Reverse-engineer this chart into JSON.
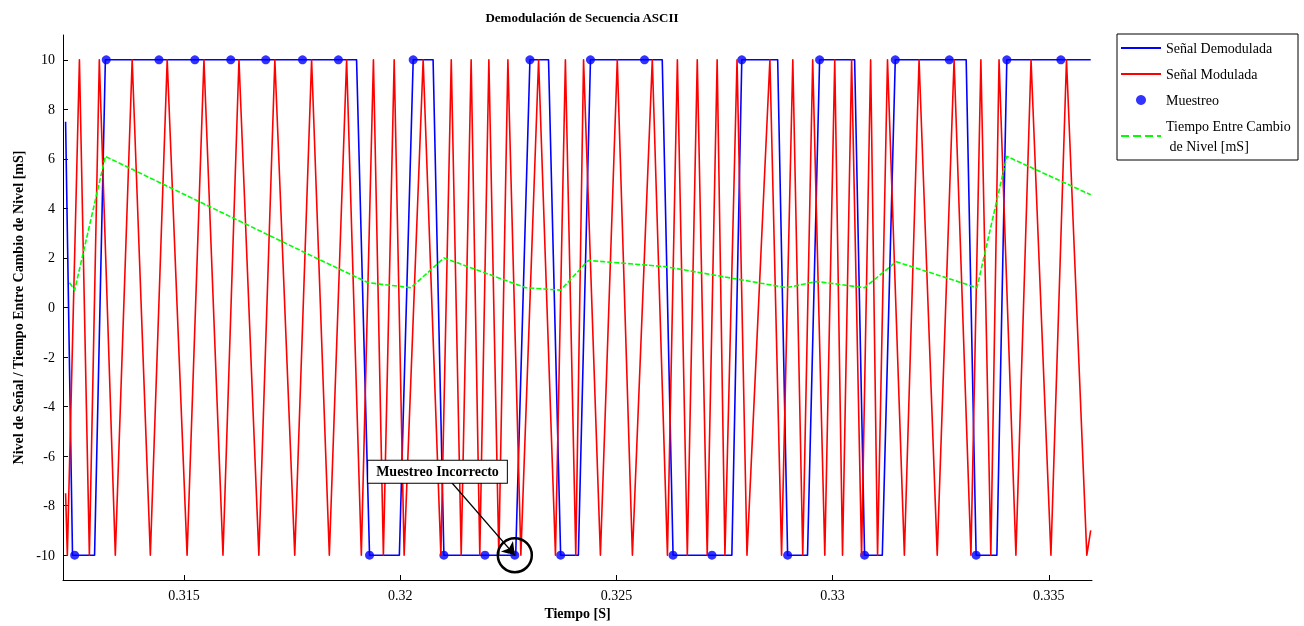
{
  "chart_data": {
    "type": "line",
    "title": "Demodulación de Secuencia ASCII",
    "xlabel": "Tiempo [S]",
    "ylabel": "Nivel de Señal / Tiempo Entre Cambio de Nivel [mS]",
    "xlim": [
      0.3122,
      0.336
    ],
    "xticks": [
      0.315,
      0.32,
      0.325,
      0.33,
      0.335
    ],
    "ylim": [
      -11,
      11
    ],
    "yticks": [
      -10,
      -8,
      -6,
      -4,
      -2,
      0,
      2,
      4,
      6,
      8,
      10
    ],
    "grid": false,
    "legend": "top right",
    "annotations": [
      {
        "text": "Muestreo Incorrecto",
        "x": 0.32265,
        "y": -10
      }
    ],
    "series": [
      {
        "name": "Señal Demodulada",
        "type": "line",
        "color": "#0000ff",
        "marker": "none",
        "line_style": "solid",
        "x": [
          0.31226,
          0.31242,
          0.31293,
          0.31318,
          0.31899,
          0.31929,
          0.31998,
          0.3203,
          0.32076,
          0.32101,
          0.32267,
          0.323,
          0.32343,
          0.32371,
          0.32412,
          0.3244,
          0.32606,
          0.32631,
          0.32767,
          0.3279,
          0.32873,
          0.32896,
          0.32942,
          0.3297,
          0.33051,
          0.33074,
          0.33115,
          0.33145,
          0.33309,
          0.33332,
          0.3338,
          0.33403,
          0.33597
        ],
        "values": [
          7.5,
          -10,
          -10,
          10,
          10,
          -10,
          -10,
          10,
          10,
          -10,
          -10,
          10,
          10,
          -10,
          -10,
          10,
          10,
          -10,
          -10,
          10,
          10,
          -10,
          -10,
          10,
          10,
          -10,
          -10,
          10,
          10,
          -10,
          -10,
          10,
          10
        ]
      },
      {
        "name": "Señal Modulada",
        "type": "line",
        "color": "#ff0000",
        "marker": "none",
        "line_style": "solid",
        "x": [
          0.31226,
          0.3123,
          0.31258,
          0.31281,
          0.31304,
          0.31341,
          0.3138,
          0.31422,
          0.31461,
          0.31507,
          0.31546,
          0.3159,
          0.31627,
          0.31673,
          0.3171,
          0.31756,
          0.31795,
          0.31836,
          0.31876,
          0.3191,
          0.31938,
          0.31961,
          0.31986,
          0.32009,
          0.32053,
          0.32094,
          0.32118,
          0.32141,
          0.32164,
          0.32184,
          0.32205,
          0.32228,
          0.32249,
          0.32279,
          0.3232,
          0.32359,
          0.32382,
          0.32406,
          0.32424,
          0.32463,
          0.32502,
          0.32537,
          0.32583,
          0.32618,
          0.32641,
          0.32664,
          0.32687,
          0.3271,
          0.32733,
          0.32751,
          0.32779,
          0.32802,
          0.32855,
          0.32882,
          0.32908,
          0.32931,
          0.32954,
          0.32982,
          0.33005,
          0.33023,
          0.33044,
          0.33067,
          0.33088,
          0.33104,
          0.33127,
          0.33166,
          0.332,
          0.33242,
          0.33281,
          0.3332,
          0.33343,
          0.33366,
          0.33385,
          0.33424,
          0.33459,
          0.33505,
          0.33541,
          0.33588,
          0.33597
        ],
        "values": [
          -7.5,
          -10,
          10,
          -10,
          10,
          -10,
          10,
          -10,
          10,
          -10,
          10,
          -10,
          10,
          -10,
          10,
          -10,
          10,
          -10,
          10,
          -10,
          10,
          -10,
          10,
          -10,
          10,
          -10,
          10,
          -10,
          10,
          -10,
          10,
          -10,
          10,
          -10,
          10,
          -10,
          10,
          -10,
          10,
          -10,
          10,
          -10,
          10,
          -10,
          10,
          -10,
          10,
          -10,
          10,
          -10,
          10,
          -10,
          10,
          -10,
          10,
          -10,
          10,
          -10,
          10,
          -10,
          10,
          -10,
          10,
          -10,
          10,
          -10,
          10,
          -10,
          10,
          -10,
          10,
          -10,
          10,
          -10,
          10,
          -10,
          10,
          -10,
          -9
        ]
      },
      {
        "name": "Muestreo",
        "type": "scatter",
        "color": "#0000ff",
        "marker": "circle",
        "x": [
          0.31247,
          0.3132,
          0.31442,
          0.31525,
          0.31608,
          0.31689,
          0.31774,
          0.31857,
          0.31929,
          0.3203,
          0.32101,
          0.32196,
          0.32265,
          0.323,
          0.32371,
          0.3244,
          0.32565,
          0.32631,
          0.32721,
          0.3279,
          0.32896,
          0.3297,
          0.33074,
          0.33145,
          0.3327,
          0.33332,
          0.33403,
          0.33528
        ],
        "values": [
          -10,
          10,
          10,
          10,
          10,
          10,
          10,
          10,
          -10,
          10,
          -10,
          -10,
          -10,
          10,
          -10,
          10,
          10,
          -10,
          -10,
          10,
          -10,
          10,
          -10,
          10,
          10,
          -10,
          10,
          10
        ]
      },
      {
        "name": "Tiempo Entre Cambio de Nivel [mS]",
        "type": "line",
        "color": "#00ff00",
        "marker": "none",
        "line_style": "dashed",
        "x": [
          0.31235,
          0.31247,
          0.31318,
          0.31829,
          0.31926,
          0.32025,
          0.32101,
          0.3229,
          0.32371,
          0.32435,
          0.32613,
          0.32894,
          0.32963,
          0.33074,
          0.33147,
          0.33334,
          0.33403,
          0.33597
        ],
        "values": [
          1.0,
          0.7,
          6.1,
          1.8,
          1.0,
          0.8,
          2.0,
          0.8,
          0.7,
          1.9,
          1.65,
          0.8,
          1.05,
          0.8,
          1.85,
          0.8,
          6.1,
          4.55
        ]
      }
    ]
  }
}
